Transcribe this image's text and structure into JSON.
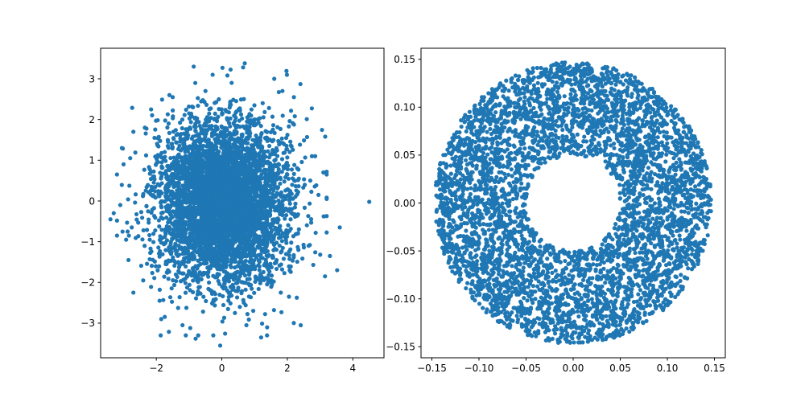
{
  "chart_data": [
    {
      "type": "scatter",
      "title": "",
      "xlabel": "",
      "ylabel": "",
      "xlim": [
        -3.7,
        4.95
      ],
      "ylim": [
        -3.85,
        3.75
      ],
      "xticks": [
        -2,
        0,
        2,
        4
      ],
      "xtick_labels": [
        "−2",
        "0",
        "2",
        "4"
      ],
      "yticks": [
        -3,
        -2,
        -1,
        0,
        1,
        2,
        3
      ],
      "ytick_labels": [
        "−3",
        "−2",
        "−1",
        "0",
        "1",
        "2",
        "3"
      ],
      "grid": false,
      "legend": "none",
      "color": "#1f77b4",
      "distribution": "standard normal (2D), mean [0, 0], std 1",
      "n_points": 5000,
      "points": [
        [
          4.5,
          -0.02
        ],
        [
          3.52,
          -1.7
        ],
        [
          3.2,
          0.65
        ],
        [
          3.1,
          0.7
        ],
        [
          2.85,
          1.1
        ],
        [
          2.75,
          1.1
        ],
        [
          2.4,
          2.87
        ],
        [
          2.2,
          2.55
        ],
        [
          1.85,
          2.7
        ],
        [
          1.6,
          3.0
        ],
        [
          0.7,
          3.38
        ],
        [
          0.65,
          3.28
        ],
        [
          0.02,
          3.27
        ],
        [
          0.3,
          2.9
        ],
        [
          -0.5,
          2.7
        ],
        [
          -1.0,
          2.15
        ],
        [
          -1.6,
          2.6
        ],
        [
          -1.5,
          2.55
        ],
        [
          -2.7,
          1.7
        ],
        [
          -2.35,
          1.8
        ],
        [
          -3.05,
          1.3
        ],
        [
          -3.0,
          0.9
        ],
        [
          -3.3,
          -0.3
        ],
        [
          -3.4,
          -0.45
        ],
        [
          -3.1,
          -0.1
        ],
        [
          -2.75,
          -0.65
        ],
        [
          -2.85,
          -1.45
        ],
        [
          -2.7,
          -2.25
        ],
        [
          -2.4,
          -1.95
        ],
        [
          -1.9,
          -2.45
        ],
        [
          -1.85,
          -2.9
        ],
        [
          -1.2,
          -3.05
        ],
        [
          -1.1,
          -3.3
        ],
        [
          -0.8,
          -3.38
        ],
        [
          -0.05,
          -3.55
        ],
        [
          0.75,
          -3.05
        ],
        [
          1.2,
          -3.35
        ],
        [
          0.4,
          -2.75
        ],
        [
          0.55,
          -2.6
        ],
        [
          1.8,
          -2.25
        ],
        [
          2.05,
          -2.35
        ],
        [
          3.15,
          -1.85
        ],
        [
          2.65,
          -1.1
        ],
        [
          3.3,
          -1.35
        ],
        [
          2.7,
          0.5
        ],
        [
          2.95,
          0.15
        ],
        [
          3.6,
          -0.65
        ],
        [
          1.55,
          1.25
        ],
        [
          -2.2,
          -0.95
        ],
        [
          2.1,
          -0.45
        ]
      ]
    },
    {
      "type": "scatter",
      "title": "",
      "xlabel": "",
      "ylabel": "",
      "xlim": [
        -0.1615,
        0.1615
      ],
      "ylim": [
        -0.1615,
        0.1615
      ],
      "xticks": [
        -0.15,
        -0.1,
        -0.05,
        0.0,
        0.05,
        0.1,
        0.15
      ],
      "xtick_labels": [
        "−0.15",
        "−0.10",
        "−0.05",
        "0.00",
        "0.05",
        "0.10",
        "0.15"
      ],
      "yticks": [
        -0.15,
        -0.1,
        -0.05,
        0.0,
        0.05,
        0.1,
        0.15
      ],
      "ytick_labels": [
        "−0.15",
        "−0.10",
        "−0.05",
        "0.00",
        "0.05",
        "0.10",
        "0.15"
      ],
      "grid": false,
      "legend": "none",
      "color": "#1f77b4",
      "distribution": "uniform annulus",
      "inner_radius": 0.05,
      "outer_radius": 0.147,
      "n_points": 5000
    }
  ]
}
